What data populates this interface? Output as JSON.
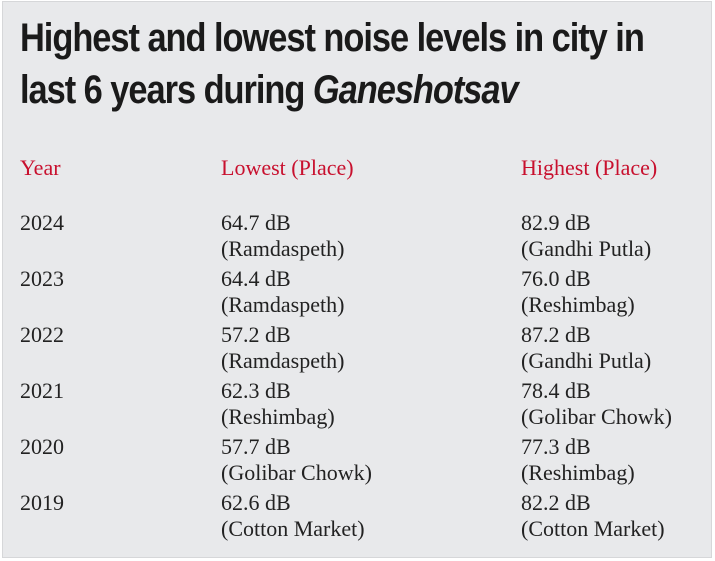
{
  "title": {
    "line1": "Highest and lowest noise levels in city in",
    "line2_prefix": "last 6 years during ",
    "line2_italic": "Ganeshotsav"
  },
  "colors": {
    "header": "#c8102e",
    "background": "#e8e9eb",
    "text": "#222222"
  },
  "chart_data": {
    "type": "table",
    "title": "Highest and lowest noise levels in city in last 6 years during Ganeshotsav",
    "columns": [
      "Year",
      "Lowest (Place)",
      "Highest (Place)"
    ],
    "rows": [
      {
        "year": "2024",
        "lowest_value": "64.7 dB",
        "lowest_place": "(Ramdaspeth)",
        "highest_value": "82.9 dB",
        "highest_place": "(Gandhi Putla)"
      },
      {
        "year": "2023",
        "lowest_value": "64.4 dB",
        "lowest_place": "(Ramdaspeth)",
        "highest_value": "76.0 dB",
        "highest_place": "(Reshimbag)"
      },
      {
        "year": "2022",
        "lowest_value": "57.2 dB",
        "lowest_place": "(Ramdaspeth)",
        "highest_value": "87.2 dB",
        "highest_place": "(Gandhi Putla)"
      },
      {
        "year": "2021",
        "lowest_value": "62.3 dB",
        "lowest_place": "(Reshimbag)",
        "highest_value": "78.4 dB",
        "highest_place": "(Golibar Chowk)"
      },
      {
        "year": "2020",
        "lowest_value": "57.7 dB",
        "lowest_place": "(Golibar Chowk)",
        "highest_value": "77.3 dB",
        "highest_place": "(Reshimbag)"
      },
      {
        "year": "2019",
        "lowest_value": "62.6 dB",
        "lowest_place": "(Cotton Market)",
        "highest_value": "82.2 dB",
        "highest_place": "(Cotton Market)"
      }
    ]
  }
}
